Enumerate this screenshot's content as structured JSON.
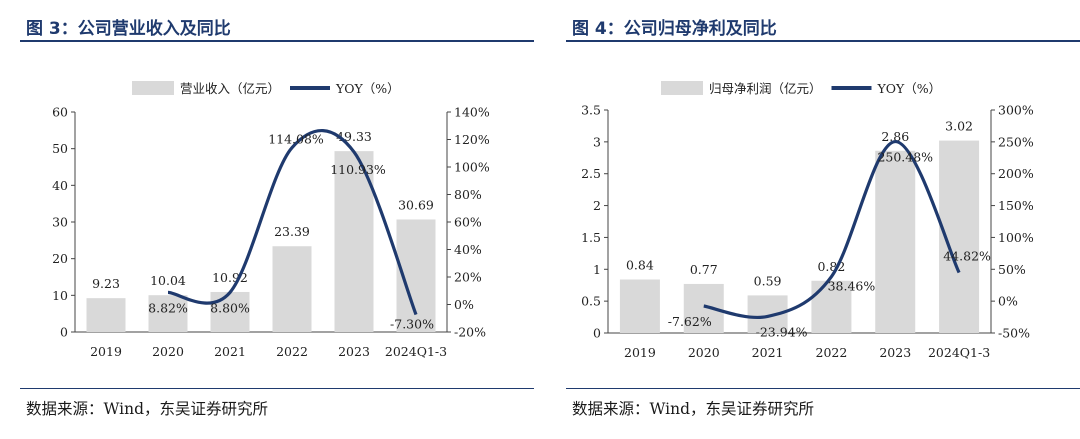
{
  "chart_data": [
    {
      "type": "bar+line",
      "figure_title": "图 3：公司营业收入及同比",
      "categories": [
        "2019",
        "2020",
        "2021",
        "2022",
        "2023",
        "2024Q1-3"
      ],
      "bar_series": {
        "name": "营业收入（亿元）",
        "values": [
          9.23,
          10.04,
          10.92,
          23.39,
          49.33,
          30.69
        ],
        "labels": [
          "9.23",
          "10.04",
          "10.92",
          "23.39",
          "49.33",
          "30.69"
        ]
      },
      "line_series": {
        "name": "YOY（%）",
        "values": [
          null,
          8.82,
          8.8,
          114.08,
          110.93,
          -7.3
        ],
        "labels": [
          "",
          "8.82%",
          "8.80%",
          "114.08%",
          "110.93%",
          "-7.30%"
        ]
      },
      "left_axis": {
        "min": 0,
        "max": 60,
        "ticks": [
          "0",
          "10",
          "20",
          "30",
          "40",
          "50",
          "60"
        ]
      },
      "right_axis": {
        "min": -20,
        "max": 140,
        "ticks": [
          "-20%",
          "0%",
          "20%",
          "40%",
          "60%",
          "80%",
          "100%",
          "120%",
          "140%"
        ]
      },
      "legend_position": "top-center",
      "source": "数据来源：Wind，东吴证券研究所",
      "colors": {
        "bar": "#d9d9d9",
        "line": "#1f3a6e",
        "title": "#1f3a6e"
      }
    },
    {
      "type": "bar+line",
      "figure_title": "图 4：公司归母净利及同比",
      "categories": [
        "2019",
        "2020",
        "2021",
        "2022",
        "2023",
        "2024Q1-3"
      ],
      "bar_series": {
        "name": "归母净利润（亿元）",
        "values": [
          0.84,
          0.77,
          0.59,
          0.82,
          2.86,
          3.02
        ],
        "labels": [
          "0.84",
          "0.77",
          "0.59",
          "0.82",
          "2.86",
          "3.02"
        ]
      },
      "line_series": {
        "name": "YOY（%）",
        "values": [
          null,
          -7.62,
          -23.94,
          38.46,
          250.48,
          44.82
        ],
        "labels": [
          "",
          "-7.62%",
          "-23.94%",
          "38.46%",
          "250.48%",
          "44.82%"
        ]
      },
      "left_axis": {
        "min": 0,
        "max": 3.5,
        "ticks": [
          "0",
          "0.5",
          "1",
          "1.5",
          "2",
          "2.5",
          "3",
          "3.5"
        ]
      },
      "right_axis": {
        "min": -50,
        "max": 300,
        "ticks": [
          "-50%",
          "0%",
          "50%",
          "100%",
          "150%",
          "200%",
          "250%",
          "300%"
        ]
      },
      "legend_position": "top-center",
      "source": "数据来源：Wind，东吴证券研究所",
      "colors": {
        "bar": "#d9d9d9",
        "line": "#1f3a6e",
        "title": "#1f3a6e"
      }
    }
  ]
}
